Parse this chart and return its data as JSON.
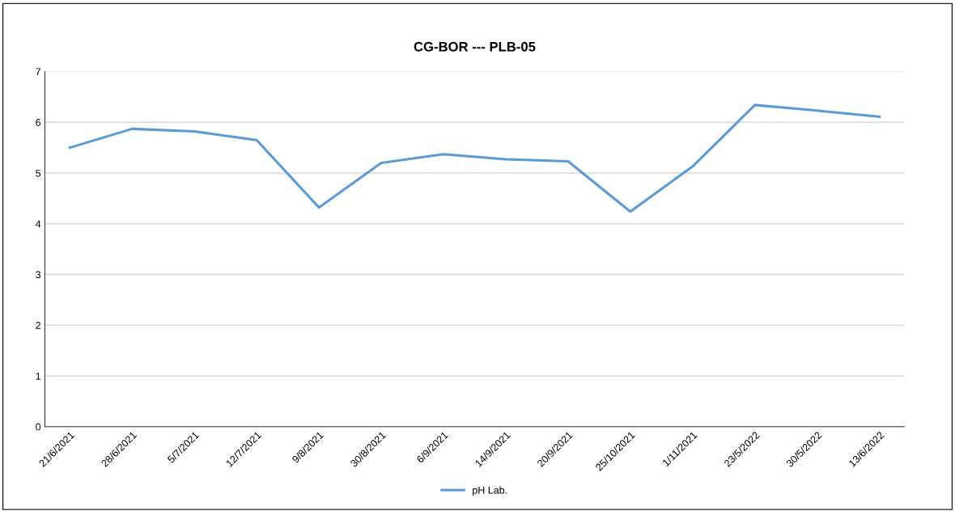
{
  "chart_data": {
    "type": "line",
    "title": "CG-BOR --- PLB-05",
    "categories": [
      "21/6/2021",
      "28/6/2021",
      "5/7/2021",
      "12/7/2021",
      "9/8/2021",
      "30/8/2021",
      "6/9/2021",
      "14/9/2021",
      "20/9/2021",
      "25/10/2021",
      "1/11/2021",
      "23/5/2022",
      "30/5/2022",
      "13/6/2022"
    ],
    "series": [
      {
        "name": "pH Lab.",
        "color": "#5b9bd5",
        "values": [
          5.5,
          5.87,
          5.82,
          5.65,
          4.32,
          5.2,
          5.37,
          5.27,
          5.23,
          4.24,
          5.13,
          6.34,
          6.23,
          6.11
        ]
      }
    ],
    "ylim": [
      0,
      7
    ],
    "yticks": [
      0,
      1,
      2,
      3,
      4,
      5,
      6,
      7
    ],
    "grid": "y",
    "legend": "bottom",
    "marker": "none",
    "line_style": "solid"
  }
}
